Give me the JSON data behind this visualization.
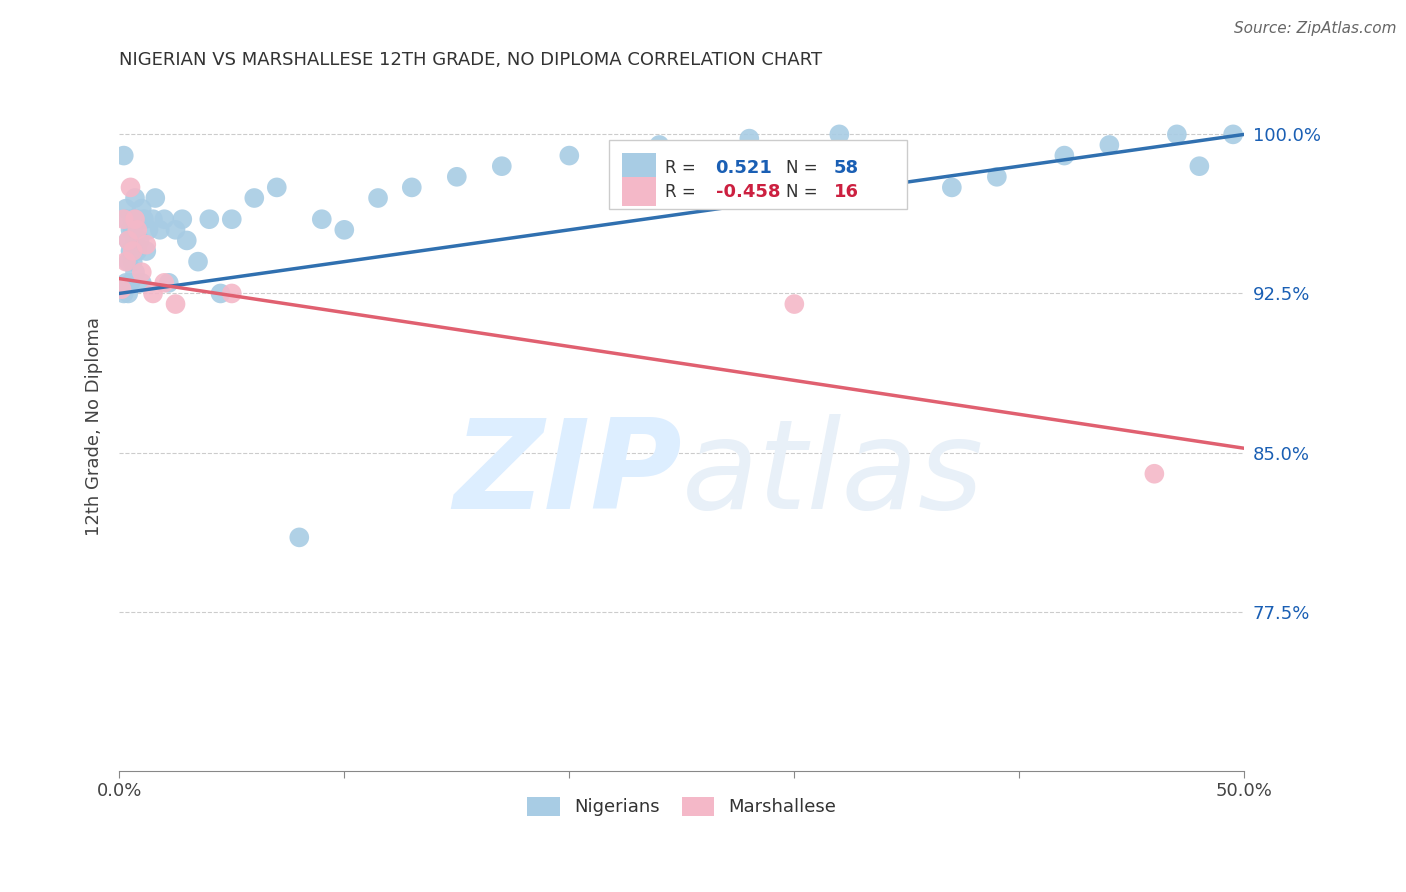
{
  "title": "NIGERIAN VS MARSHALLESE 12TH GRADE, NO DIPLOMA CORRELATION CHART",
  "source": "Source: ZipAtlas.com",
  "ylabel": "12th Grade, No Diploma",
  "yticks": [
    "100.0%",
    "92.5%",
    "85.0%",
    "77.5%"
  ],
  "ytick_vals": [
    1.0,
    0.925,
    0.85,
    0.775
  ],
  "xmin": 0.0,
  "xmax": 0.5,
  "ymin": 0.7,
  "ymax": 1.025,
  "legend_blue_r_val": "0.521",
  "legend_blue_n_val": "58",
  "legend_pink_r_val": "-0.458",
  "legend_pink_n_val": "16",
  "nigerians_label": "Nigerians",
  "marshallese_label": "Marshallese",
  "blue_color": "#a8cce4",
  "pink_color": "#f4b8c8",
  "blue_line_color": "#3070b0",
  "pink_line_color": "#e06070",
  "blue_val_color": "#1a5fb4",
  "pink_val_color": "#cc2040",
  "watermark_zip": "ZIP",
  "watermark_atlas": "atlas",
  "watermark_color": "#ddeeff",
  "nigerians_x": [
    0.001,
    0.002,
    0.002,
    0.003,
    0.003,
    0.003,
    0.004,
    0.004,
    0.004,
    0.005,
    0.005,
    0.005,
    0.006,
    0.006,
    0.006,
    0.007,
    0.007,
    0.007,
    0.008,
    0.008,
    0.009,
    0.01,
    0.01,
    0.011,
    0.012,
    0.013,
    0.015,
    0.016,
    0.018,
    0.02,
    0.022,
    0.025,
    0.028,
    0.03,
    0.035,
    0.04,
    0.045,
    0.05,
    0.06,
    0.07,
    0.08,
    0.09,
    0.1,
    0.115,
    0.13,
    0.15,
    0.17,
    0.2,
    0.24,
    0.28,
    0.32,
    0.37,
    0.39,
    0.42,
    0.44,
    0.47,
    0.48,
    0.495
  ],
  "nigerians_y": [
    0.927,
    0.99,
    0.925,
    0.965,
    0.96,
    0.93,
    0.95,
    0.94,
    0.925,
    0.955,
    0.945,
    0.93,
    0.96,
    0.955,
    0.94,
    0.97,
    0.95,
    0.935,
    0.96,
    0.945,
    0.95,
    0.965,
    0.93,
    0.96,
    0.945,
    0.955,
    0.96,
    0.97,
    0.955,
    0.96,
    0.93,
    0.955,
    0.96,
    0.95,
    0.94,
    0.96,
    0.925,
    0.96,
    0.97,
    0.975,
    0.81,
    0.96,
    0.955,
    0.97,
    0.975,
    0.98,
    0.985,
    0.99,
    0.995,
    0.998,
    1.0,
    0.975,
    0.98,
    0.99,
    0.995,
    1.0,
    0.985,
    1.0
  ],
  "marshallese_x": [
    0.001,
    0.002,
    0.003,
    0.004,
    0.005,
    0.006,
    0.007,
    0.008,
    0.01,
    0.012,
    0.015,
    0.02,
    0.025,
    0.05,
    0.3,
    0.46
  ],
  "marshallese_y": [
    0.927,
    0.96,
    0.94,
    0.95,
    0.975,
    0.945,
    0.96,
    0.955,
    0.935,
    0.948,
    0.925,
    0.93,
    0.92,
    0.925,
    0.92,
    0.84
  ],
  "blue_trendline_x": [
    0.0,
    0.5
  ],
  "blue_trendline_y": [
    0.925,
    1.0
  ],
  "pink_trendline_x": [
    0.0,
    0.5
  ],
  "pink_trendline_y": [
    0.932,
    0.852
  ]
}
